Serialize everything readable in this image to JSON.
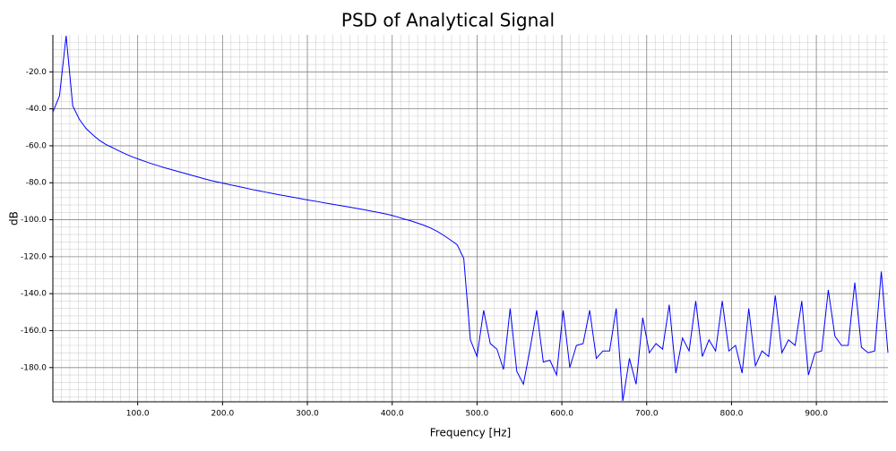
{
  "chart_data": {
    "type": "line",
    "title": "PSD of Analytical Signal",
    "xlabel": "Frequency [Hz]",
    "ylabel": "dB",
    "x": [
      0,
      7.8125,
      15.625,
      23.4375,
      31.25,
      39.0625,
      46.875,
      54.6875,
      62.5,
      70.3125,
      78.125,
      85.9375,
      93.75,
      101.5625,
      109.375,
      117.1875,
      125,
      132.8125,
      140.625,
      148.4375,
      156.25,
      164.0625,
      171.875,
      179.6875,
      187.5,
      195.3125,
      203.125,
      210.9375,
      218.75,
      226.5625,
      234.375,
      242.1875,
      250,
      257.8125,
      265.625,
      273.4375,
      281.25,
      289.0625,
      296.875,
      304.6875,
      312.5,
      320.3125,
      328.125,
      335.9375,
      343.75,
      351.5625,
      359.375,
      367.1875,
      375,
      382.8125,
      390.625,
      398.4375,
      406.25,
      414.0625,
      421.875,
      429.6875,
      437.5,
      445.3125,
      453.125,
      460.9375,
      468.75,
      476.5625,
      484.375,
      492.1875,
      500,
      507.8125,
      515.625,
      523.4375,
      531.25,
      539.0625,
      546.875,
      554.6875,
      562.5,
      570.3125,
      578.125,
      585.9375,
      593.75,
      601.5625,
      609.375,
      617.1875,
      625,
      632.8125,
      640.625,
      648.4375,
      656.25,
      664.0625,
      671.875,
      679.6875,
      687.5,
      695.3125,
      703.125,
      710.9375,
      718.75,
      726.5625,
      734.375,
      742.1875,
      750,
      757.8125,
      765.625,
      773.4375,
      781.25,
      789.0625,
      796.875,
      804.6875,
      812.5,
      820.3125,
      828.125,
      835.9375,
      843.75,
      851.5625,
      859.375,
      867.1875,
      875,
      882.8125,
      890.625,
      898.4375,
      906.25,
      914.0625,
      921.875,
      929.6875,
      937.5,
      945.3125,
      953.125,
      960.9375,
      968.75,
      976.5625,
      984.375
    ],
    "values": [
      -41.8,
      -33,
      -0.5,
      -38.4,
      -45.7,
      -50.6,
      -54,
      -57,
      -59.3,
      -61,
      -62.8,
      -64.5,
      -66,
      -67.3,
      -68.6,
      -69.8,
      -70.9,
      -72,
      -73,
      -74,
      -75,
      -76,
      -77,
      -78,
      -78.9,
      -79.7,
      -80.5,
      -81.3,
      -82,
      -82.8,
      -83.6,
      -84.3,
      -85,
      -85.7,
      -86.4,
      -87,
      -87.7,
      -88.3,
      -89,
      -89.6,
      -90.2,
      -90.9,
      -91.5,
      -92.1,
      -92.7,
      -93.3,
      -94,
      -94.6,
      -95.3,
      -96,
      -96.7,
      -97.5,
      -98.5,
      -99.6,
      -100.6,
      -101.8,
      -103,
      -104.5,
      -106.3,
      -108.5,
      -111,
      -113.5,
      -121,
      -165,
      -174,
      -149,
      -167,
      -170,
      -181,
      -148,
      -182,
      -189,
      -170,
      -149,
      -177,
      -176,
      -184,
      -149,
      -180,
      -168,
      -167,
      -149,
      -175,
      -171,
      -171,
      -148,
      -198,
      -175,
      -189,
      -153,
      -172,
      -167,
      -170,
      -146,
      -183,
      -164,
      -171,
      -144,
      -174,
      -165,
      -171,
      -144,
      -171,
      -168,
      -183,
      -148,
      -179,
      -171,
      -174,
      -141,
      -172,
      -165,
      -168,
      -144,
      -184,
      -172,
      -171,
      -138,
      -163,
      -168,
      -168,
      -134,
      -169,
      -172,
      -171,
      -128,
      -172
    ],
    "color": "#0000ff",
    "xlim": [
      0,
      984.375
    ],
    "ylim": [
      -198.5,
      0
    ],
    "xticks": [
      {
        "value": 100,
        "label": "100.0"
      },
      {
        "value": 200,
        "label": "200.0"
      },
      {
        "value": 300,
        "label": "300.0"
      },
      {
        "value": 400,
        "label": "400.0"
      },
      {
        "value": 500,
        "label": "500.0"
      },
      {
        "value": 600,
        "label": "600.0"
      },
      {
        "value": 700,
        "label": "700.0"
      },
      {
        "value": 800,
        "label": "800.0"
      },
      {
        "value": 900,
        "label": "900.0"
      }
    ],
    "yticks": [
      {
        "value": -180,
        "label": "-180.0"
      },
      {
        "value": -160,
        "label": "-160.0"
      },
      {
        "value": -140,
        "label": "-140.0"
      },
      {
        "value": -120,
        "label": "-120.0"
      },
      {
        "value": -100,
        "label": "-100.0"
      },
      {
        "value": -80,
        "label": "-80.0"
      },
      {
        "value": -60,
        "label": "-60.0"
      },
      {
        "value": -40,
        "label": "-40.0"
      },
      {
        "value": -20,
        "label": "-20.0"
      }
    ],
    "grid": true,
    "minor_grid": true
  }
}
